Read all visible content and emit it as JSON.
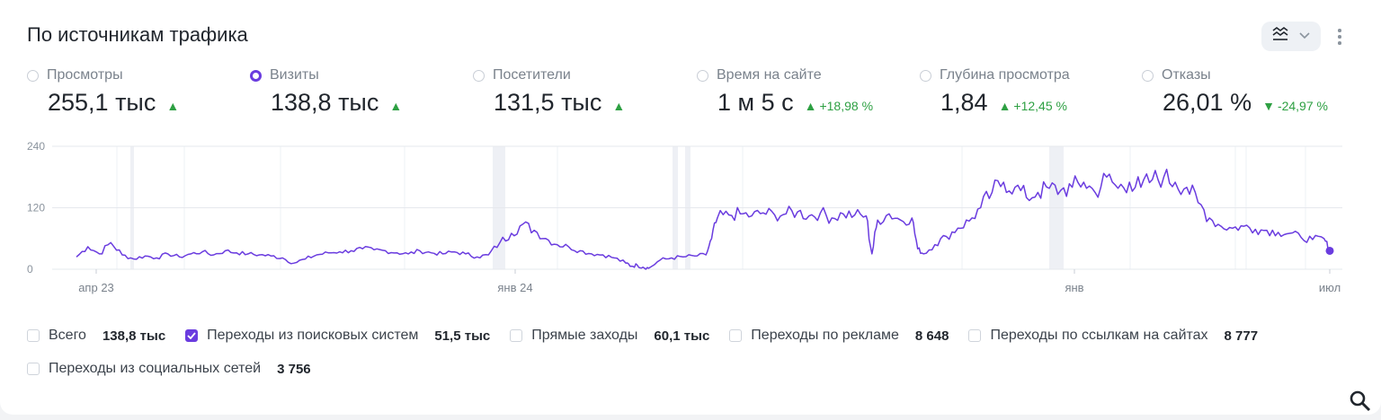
{
  "title": "По источникам трафика",
  "controls": {
    "chart_type_icon": "lines-chart-icon",
    "chevron_icon": "chevron-down-icon",
    "more_icon": "kebab-menu-icon"
  },
  "metrics": [
    {
      "name": "Просмотры",
      "value": "255,1 тыс",
      "trend": "up",
      "delta": "",
      "selected": false
    },
    {
      "name": "Визиты",
      "value": "138,8 тыс",
      "trend": "up",
      "delta": "",
      "selected": true
    },
    {
      "name": "Посетители",
      "value": "131,5 тыс",
      "trend": "up",
      "delta": "",
      "selected": false
    },
    {
      "name": "Время на сайте",
      "value": "1 м 5 с",
      "trend": "up",
      "delta": "+18,98 %",
      "selected": false
    },
    {
      "name": "Глубина просмотра",
      "value": "1,84",
      "trend": "up",
      "delta": "+12,45 %",
      "selected": false
    },
    {
      "name": "Отказы",
      "value": "26,01 %",
      "trend": "down",
      "delta": "-24,97 %",
      "selected": false
    }
  ],
  "chart_data": {
    "type": "line",
    "x_tick_labels": [
      "апр 23",
      "янв 24",
      "янв",
      "июл"
    ],
    "y_ticks": [
      0,
      120,
      240
    ],
    "ylim": [
      0,
      240
    ],
    "grid": true,
    "series": [
      {
        "color": "#6a3cdf",
        "points": [
          [
            0,
            24
          ],
          [
            2,
            44
          ],
          [
            4,
            30
          ],
          [
            6,
            52
          ],
          [
            8,
            28
          ],
          [
            10,
            20
          ],
          [
            12,
            26
          ],
          [
            14,
            22
          ],
          [
            16,
            30
          ],
          [
            18,
            24
          ],
          [
            20,
            30
          ],
          [
            22,
            34
          ],
          [
            24,
            28
          ],
          [
            26,
            36
          ],
          [
            28,
            32
          ],
          [
            30,
            30
          ],
          [
            32,
            28
          ],
          [
            34,
            26
          ],
          [
            36,
            22
          ],
          [
            38,
            12
          ],
          [
            40,
            20
          ],
          [
            42,
            28
          ],
          [
            44,
            32
          ],
          [
            46,
            34
          ],
          [
            48,
            36
          ],
          [
            50,
            40
          ],
          [
            52,
            38
          ],
          [
            54,
            36
          ],
          [
            56,
            32
          ],
          [
            58,
            30
          ],
          [
            60,
            36
          ],
          [
            62,
            32
          ],
          [
            64,
            30
          ],
          [
            66,
            34
          ],
          [
            68,
            30
          ],
          [
            70,
            24
          ],
          [
            72,
            28
          ],
          [
            74,
            52
          ],
          [
            76,
            70
          ],
          [
            78,
            88
          ],
          [
            80,
            76
          ],
          [
            82,
            60
          ],
          [
            84,
            48
          ],
          [
            86,
            44
          ],
          [
            88,
            36
          ],
          [
            90,
            30
          ],
          [
            92,
            28
          ],
          [
            94,
            22
          ],
          [
            96,
            12
          ],
          [
            97,
            6
          ],
          [
            98,
            8
          ],
          [
            99,
            4
          ],
          [
            100,
            2
          ],
          [
            102,
            18
          ],
          [
            104,
            22
          ],
          [
            106,
            24
          ],
          [
            108,
            26
          ],
          [
            110,
            28
          ],
          [
            111,
            60
          ],
          [
            112,
            100
          ],
          [
            114,
            106
          ],
          [
            116,
            108
          ],
          [
            118,
            104
          ],
          [
            120,
            110
          ],
          [
            122,
            106
          ],
          [
            124,
            108
          ],
          [
            126,
            112
          ],
          [
            128,
            104
          ],
          [
            130,
            110
          ],
          [
            132,
            100
          ],
          [
            134,
            108
          ],
          [
            136,
            106
          ],
          [
            138,
            104
          ],
          [
            139,
            30
          ],
          [
            140,
            96
          ],
          [
            142,
            108
          ],
          [
            144,
            96
          ],
          [
            146,
            100
          ],
          [
            147,
            40
          ],
          [
            148,
            30
          ],
          [
            150,
            48
          ],
          [
            152,
            64
          ],
          [
            154,
            80
          ],
          [
            156,
            94
          ],
          [
            158,
            120
          ],
          [
            160,
            150
          ],
          [
            162,
            170
          ],
          [
            164,
            160
          ],
          [
            166,
            140
          ],
          [
            168,
            150
          ],
          [
            170,
            158
          ],
          [
            172,
            154
          ],
          [
            174,
            160
          ],
          [
            176,
            170
          ],
          [
            178,
            150
          ],
          [
            180,
            180
          ],
          [
            182,
            158
          ],
          [
            184,
            170
          ],
          [
            186,
            160
          ],
          [
            188,
            175
          ],
          [
            190,
            180
          ],
          [
            192,
            170
          ],
          [
            194,
            160
          ],
          [
            196,
            130
          ],
          [
            198,
            100
          ],
          [
            200,
            84
          ],
          [
            202,
            80
          ],
          [
            204,
            84
          ],
          [
            206,
            78
          ],
          [
            208,
            76
          ],
          [
            210,
            72
          ],
          [
            212,
            70
          ],
          [
            214,
            62
          ],
          [
            216,
            58
          ],
          [
            218,
            60
          ],
          [
            219,
            36
          ]
        ]
      }
    ]
  },
  "legend": [
    {
      "name": "Всего",
      "value": "138,8 тыс",
      "checked": false
    },
    {
      "name": "Переходы из поисковых систем",
      "value": "51,5 тыс",
      "checked": true
    },
    {
      "name": "Прямые заходы",
      "value": "60,1 тыс",
      "checked": false
    },
    {
      "name": "Переходы по рекламе",
      "value": "8 648",
      "checked": false
    },
    {
      "name": "Переходы по ссылкам на сайтах",
      "value": "8 777",
      "checked": false
    },
    {
      "name": "Переходы из социальных сетей",
      "value": "3 756",
      "checked": false
    }
  ],
  "search_icon": "search-icon"
}
